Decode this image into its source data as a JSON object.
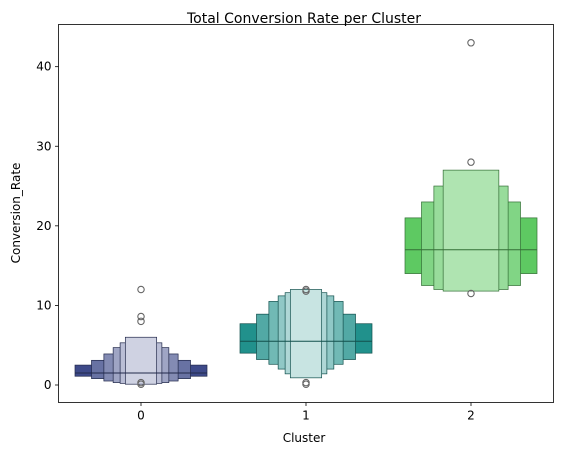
{
  "chart_data": {
    "type": "boxen",
    "title": "Total Conversion Rate per Cluster",
    "xlabel": "Cluster",
    "ylabel": "Conversion_Rate",
    "ylim": [
      -2.2,
      45.3
    ],
    "yticks": [
      0,
      10,
      20,
      30,
      40
    ],
    "categories": [
      "0",
      "1",
      "2"
    ],
    "grid": false,
    "legend": "none",
    "series": [
      {
        "category": "0",
        "color": "#3e4a89",
        "median": 1.5,
        "levels": [
          [
            1.1,
            2.5
          ],
          [
            0.8,
            3.1
          ],
          [
            0.5,
            3.9
          ],
          [
            0.3,
            4.7
          ],
          [
            0.2,
            5.3
          ],
          [
            0.1,
            6.0
          ]
        ],
        "outliers": [
          0.1,
          0.3,
          8.0,
          8.6,
          12.0
        ]
      },
      {
        "category": "1",
        "color": "#21918c",
        "median": 5.5,
        "levels": [
          [
            4.0,
            7.7
          ],
          [
            3.2,
            8.9
          ],
          [
            2.6,
            10.5
          ],
          [
            2.0,
            11.2
          ],
          [
            1.4,
            11.6
          ],
          [
            0.9,
            12.0
          ]
        ],
        "outliers": [
          0.1,
          0.3,
          11.8,
          12.0
        ]
      },
      {
        "category": "2",
        "color": "#5ec962",
        "median": 17.0,
        "levels": [
          [
            14.0,
            21.0
          ],
          [
            12.5,
            23.0
          ],
          [
            12.0,
            25.0
          ],
          [
            11.8,
            27.0
          ]
        ],
        "outliers": [
          11.5,
          28.0,
          43.0
        ]
      }
    ]
  }
}
